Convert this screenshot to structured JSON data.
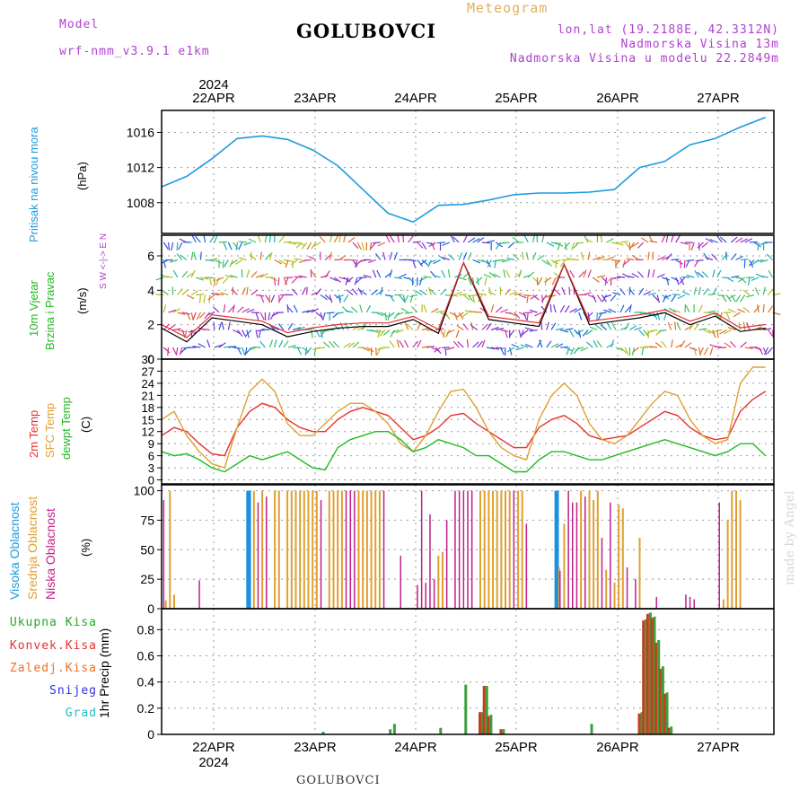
{
  "header": {
    "model_label": "Model",
    "model_name": "wrf-nmm_v3.9.1 e1km",
    "station": "GOLUBOVCI",
    "meteogram": "Meteogram",
    "lonlat": "lon,lat (19.2188E, 42.3312N)",
    "elevation": "Nadmorska Visina 13m",
    "model_elevation": "Nadmorska Visina u modelu 22.2849m",
    "footer_station": "GOLUBOVCI",
    "credit": "made by Angel"
  },
  "axis_dates": [
    "22APR",
    "23APR",
    "24APR",
    "25APR",
    "26APR",
    "27APR"
  ],
  "axis_year": "2024",
  "panel_labels": {
    "pressure": {
      "name": "Pritisak na nivou mora",
      "unit": "(hPa)"
    },
    "wind": {
      "name1": "10m Vjetar",
      "name2": "Brzina i Pravac",
      "unit": "(m/s)",
      "compass_top": "W <-|-> E",
      "compass_n": "N",
      "compass_s": "S"
    },
    "temp": {
      "t2m": "2m Temp",
      "sfc": "SFC Temp",
      "dewpt": "dewpt Temp",
      "unit": "(C)"
    },
    "cloud": {
      "high": "Visoka Oblacnost",
      "mid": "Srednja Oblacnost",
      "low": "Niska Oblacnost",
      "unit": "(%)"
    },
    "precip": {
      "unit": "1hr Precip (mm)"
    }
  },
  "precip_legend": [
    {
      "label": "Ukupna Kisa",
      "color": "#22aa22"
    },
    {
      "label": "Konvek.Kisa",
      "color": "#e83030"
    },
    {
      "label": "Zaledj.Kisa",
      "color": "#f07020"
    },
    {
      "label": "Snijeg",
      "color": "#3030e0"
    },
    {
      "label": "Grad",
      "color": "#20c0c0"
    }
  ],
  "colors": {
    "pressure": "#1e9be0",
    "t2m": "#e83030",
    "sfc": "#e0a030",
    "dewpt": "#22bb22",
    "high_cloud": "#1e90e0",
    "mid_cloud": "#e0a030",
    "low_cloud": "#c0208a",
    "precip": "#3aa03a",
    "precip_conv": "#c04020"
  },
  "chart_data": [
    {
      "type": "line",
      "name": "pressure",
      "x_hours": [
        0,
        6,
        12,
        18,
        24,
        30,
        36,
        42,
        48,
        54,
        60,
        66,
        72,
        78,
        84,
        90,
        96,
        102,
        108,
        114,
        120,
        126,
        132,
        138,
        144
      ],
      "values": [
        1009.8,
        1011.0,
        1013.0,
        1015.3,
        1015.6,
        1015.2,
        1014.0,
        1012.2,
        1009.5,
        1006.8,
        1005.8,
        1007.7,
        1007.8,
        1008.3,
        1008.9,
        1009.1,
        1009.1,
        1009.2,
        1009.5,
        1012.0,
        1012.7,
        1014.6,
        1015.3,
        1016.6,
        1017.7
      ],
      "ylim": [
        1004.5,
        1018.5
      ],
      "yticks": [
        1008,
        1012,
        1016
      ]
    },
    {
      "type": "line",
      "name": "wind_speed",
      "x_hours": [
        0,
        6,
        12,
        18,
        24,
        30,
        36,
        42,
        48,
        54,
        60,
        66,
        72,
        78,
        84,
        90,
        96,
        102,
        108,
        114,
        120,
        126,
        132,
        138,
        144
      ],
      "values": [
        1.8,
        1.0,
        2.4,
        2.2,
        2.0,
        1.3,
        1.6,
        1.8,
        1.9,
        1.9,
        2.3,
        1.5,
        5.6,
        2.3,
        2.1,
        1.9,
        5.5,
        2.0,
        2.2,
        2.4,
        2.7,
        2.0,
        2.5,
        1.6,
        1.8
      ],
      "ylim": [
        0,
        7.2
      ],
      "yticks": [
        0,
        2,
        4,
        6
      ]
    },
    {
      "type": "line",
      "name": "temperature",
      "x_hours": [
        0,
        3,
        6,
        9,
        12,
        15,
        18,
        21,
        24,
        27,
        30,
        33,
        36,
        39,
        42,
        45,
        48,
        51,
        54,
        57,
        60,
        63,
        66,
        69,
        72,
        75,
        78,
        81,
        84,
        87,
        90,
        93,
        96,
        99,
        102,
        105,
        108,
        111,
        114,
        117,
        120,
        123,
        126,
        129,
        132,
        135,
        138,
        141,
        144
      ],
      "series": [
        {
          "name": "2m Temp",
          "values": [
            11,
            13,
            12,
            9,
            6.5,
            6,
            13,
            17,
            19,
            18,
            15,
            13,
            12,
            12,
            15,
            17,
            18,
            17,
            16,
            13,
            10,
            11,
            13,
            16,
            16.5,
            14,
            12,
            10,
            8,
            8,
            13,
            15,
            16,
            14,
            11,
            10,
            10.5,
            11,
            13,
            15,
            17,
            16,
            13,
            11,
            10,
            10.5,
            17,
            20,
            22
          ]
        },
        {
          "name": "SFC Temp",
          "values": [
            15,
            17,
            11,
            7,
            4,
            3,
            13,
            22,
            25,
            22,
            14,
            11,
            11,
            14,
            17,
            19,
            19,
            17,
            14,
            9,
            7,
            11,
            17,
            22,
            22.5,
            18,
            12,
            8,
            6,
            5,
            15,
            21,
            24,
            21,
            14,
            10,
            9,
            11,
            15,
            19,
            22,
            21,
            15,
            11,
            9,
            10,
            24,
            28,
            28
          ]
        },
        {
          "name": "dewpt Temp",
          "values": [
            7,
            6,
            6.5,
            5,
            3,
            2,
            4,
            6,
            5,
            6,
            7,
            5,
            3,
            2.5,
            8,
            10,
            11,
            12,
            12,
            10,
            7,
            8,
            10,
            9,
            8,
            6,
            6,
            4,
            2,
            2,
            5,
            7,
            7,
            6,
            5,
            5,
            6,
            7,
            8,
            9,
            10,
            9,
            8,
            7,
            6,
            7,
            9,
            9,
            6
          ]
        }
      ],
      "ylim": [
        -1,
        30
      ],
      "yticks": [
        0,
        3,
        6,
        9,
        12,
        15,
        18,
        21,
        24,
        27,
        30
      ]
    },
    {
      "type": "bar",
      "name": "cloud_cover",
      "ylim": [
        0,
        105
      ],
      "yticks": [
        0,
        25,
        50,
        75,
        100
      ],
      "series": [
        {
          "name": "Visoka Oblacnost",
          "bars": [
            [
              20.5,
              100
            ],
            [
              21,
              100
            ],
            [
              94,
              100
            ],
            [
              94.4,
              100
            ]
          ]
        },
        {
          "name": "Srednja Oblacnost",
          "bars": [
            [
              1,
              7
            ],
            [
              2,
              100
            ],
            [
              3,
              12
            ],
            [
              22,
              100
            ],
            [
              24,
              100
            ],
            [
              27,
              100
            ],
            [
              28,
              100
            ],
            [
              30,
              100
            ],
            [
              31,
              100
            ],
            [
              32,
              100
            ],
            [
              33,
              100
            ],
            [
              34,
              100
            ],
            [
              35,
              100
            ],
            [
              36,
              100
            ],
            [
              37,
              100
            ],
            [
              40,
              100
            ],
            [
              41,
              100
            ],
            [
              42,
              100
            ],
            [
              43,
              100
            ],
            [
              47,
              100
            ],
            [
              48,
              100
            ],
            [
              49,
              100
            ],
            [
              50,
              100
            ],
            [
              51,
              100
            ],
            [
              52,
              100
            ],
            [
              66,
              45
            ],
            [
              67,
              48
            ],
            [
              76,
              100
            ],
            [
              77,
              100
            ],
            [
              78,
              100
            ],
            [
              79,
              100
            ],
            [
              80,
              100
            ],
            [
              81,
              100
            ],
            [
              82,
              100
            ],
            [
              83,
              100
            ],
            [
              85,
              100
            ],
            [
              86,
              100
            ],
            [
              94.8,
              35
            ],
            [
              96,
              72
            ],
            [
              100,
              100
            ],
            [
              102,
              100
            ],
            [
              103,
              92
            ],
            [
              104,
              100
            ],
            [
              106,
              33
            ],
            [
              108,
              22
            ],
            [
              109,
              88
            ],
            [
              110,
              85
            ],
            [
              114,
              60
            ],
            [
              134,
              8
            ],
            [
              135,
              75
            ],
            [
              136,
              100
            ],
            [
              137,
              100
            ],
            [
              138,
              92
            ]
          ]
        },
        {
          "name": "Niska Oblacnost",
          "bars": [
            [
              0.5,
              92
            ],
            [
              9,
              24
            ],
            [
              23,
              90
            ],
            [
              25,
              95
            ],
            [
              38,
              92
            ],
            [
              44,
              100
            ],
            [
              45,
              100
            ],
            [
              46,
              100
            ],
            [
              53,
              100
            ],
            [
              57,
              45
            ],
            [
              61,
              20
            ],
            [
              62,
              100
            ],
            [
              63,
              22
            ],
            [
              64,
              80
            ],
            [
              65,
              25
            ],
            [
              68,
              75
            ],
            [
              70,
              100
            ],
            [
              71,
              100
            ],
            [
              72,
              100
            ],
            [
              73,
              100
            ],
            [
              74,
              100
            ],
            [
              84,
              100
            ],
            [
              87,
              72
            ],
            [
              95,
              32
            ],
            [
              97,
              100
            ],
            [
              98,
              90
            ],
            [
              99,
              90
            ],
            [
              101,
              95
            ],
            [
              105,
              60
            ],
            [
              107,
              90
            ],
            [
              111,
              35
            ],
            [
              113,
              25
            ],
            [
              118,
              10
            ],
            [
              125,
              12
            ],
            [
              126,
              10
            ],
            [
              127,
              8
            ],
            [
              133,
              90
            ]
          ]
        }
      ]
    },
    {
      "type": "bar",
      "name": "precipitation",
      "ylim": [
        0,
        0.96
      ],
      "yticks": [
        0,
        0.2,
        0.4,
        0.6,
        0.8
      ],
      "series": [
        {
          "name": "Ukupna Kisa",
          "bars": [
            [
              38,
              0.02
            ],
            [
              54,
              0.04
            ],
            [
              55,
              0.08
            ],
            [
              66,
              0.05
            ],
            [
              72,
              0.38
            ],
            [
              76,
              0.17
            ],
            [
              77,
              0.37
            ],
            [
              78,
              0.15
            ],
            [
              81,
              0.04
            ],
            [
              102,
              0.08
            ],
            [
              114,
              0.17
            ],
            [
              115,
              0.88
            ],
            [
              116,
              0.93
            ],
            [
              117,
              0.9
            ],
            [
              118,
              0.72
            ],
            [
              119,
              0.52
            ],
            [
              120,
              0.32
            ],
            [
              121,
              0.06
            ]
          ]
        },
        {
          "name": "Konvek.Kisa",
          "bars": [
            [
              76,
              0.17
            ],
            [
              77,
              0.37
            ],
            [
              78,
              0.14
            ],
            [
              81,
              0.04
            ],
            [
              114,
              0.16
            ],
            [
              115,
              0.87
            ],
            [
              116,
              0.92
            ],
            [
              117,
              0.89
            ],
            [
              118,
              0.7
            ],
            [
              119,
              0.5
            ],
            [
              120,
              0.31
            ],
            [
              121,
              0.05
            ]
          ]
        }
      ]
    }
  ]
}
